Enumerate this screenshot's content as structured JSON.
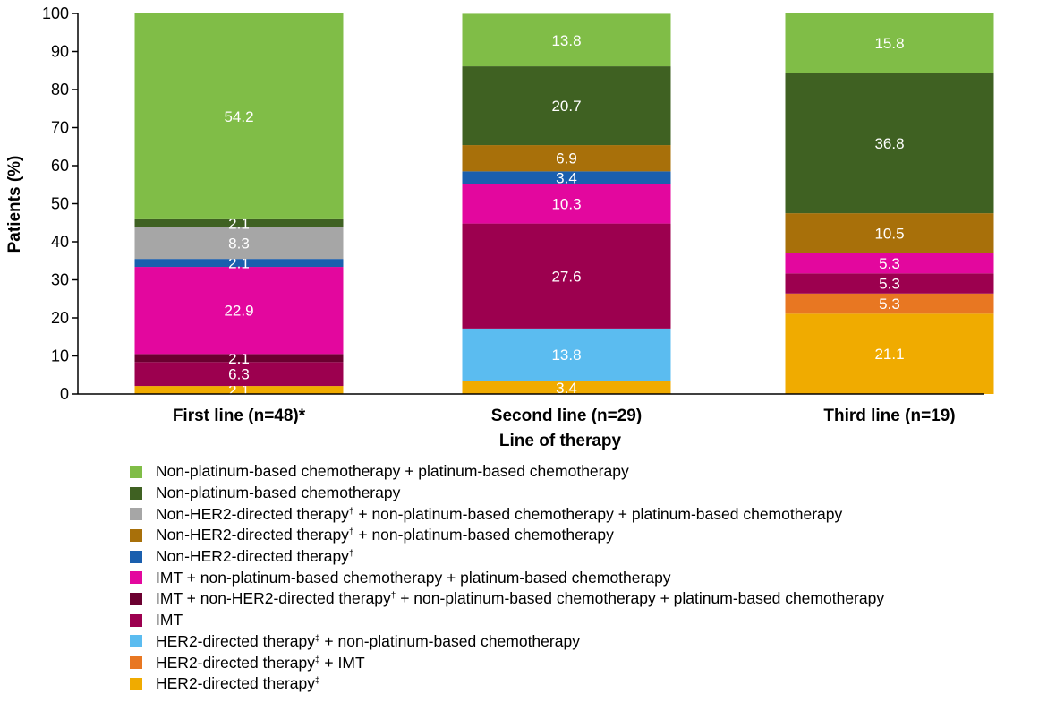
{
  "chart_data": {
    "type": "stacked-bar",
    "ylabel": "Patients (%)",
    "xlabel": "Line of therapy",
    "ylim": [
      0,
      100
    ],
    "yticks": [
      "0",
      "10",
      "20",
      "30",
      "40",
      "50",
      "60",
      "70",
      "80",
      "90",
      "100"
    ],
    "categories": [
      "First line (n=48)*",
      "Second line (n=29)",
      "Third line (n=19)"
    ],
    "series": [
      {
        "key": "her2",
        "color": "#f0ab00",
        "label": "HER2-directed therapy",
        "sup": "‡",
        "label_tail": "",
        "values": [
          2.1,
          3.4,
          21.1
        ],
        "labels": [
          "2.1",
          "3.4",
          "21.1"
        ]
      },
      {
        "key": "her2_imt",
        "color": "#e87722",
        "label": "HER2-directed therapy",
        "sup": "‡",
        "label_tail": " + IMT",
        "values": [
          0,
          0,
          5.3
        ],
        "labels": [
          "",
          "",
          "5.3"
        ]
      },
      {
        "key": "her2_nonplat",
        "color": "#5bbcf0",
        "label": "HER2-directed therapy",
        "sup": "‡",
        "label_tail": " + non-platinum-based chemotherapy",
        "values": [
          0,
          13.8,
          0
        ],
        "labels": [
          "",
          "13.8",
          ""
        ]
      },
      {
        "key": "imt",
        "color": "#9c004f",
        "label": "IMT",
        "sup": "",
        "label_tail": "",
        "values": [
          6.3,
          27.6,
          5.3
        ],
        "labels": [
          "6.3",
          "27.6",
          "5.3"
        ]
      },
      {
        "key": "imt_nonher2_nonplat_plat",
        "color": "#6b0030",
        "label": "IMT + non-HER2-directed therapy",
        "sup": "†",
        "label_tail": " + non-platinum-based chemotherapy + platinum-based chemotherapy",
        "values": [
          2.1,
          0,
          0
        ],
        "labels": [
          "2.1",
          "",
          ""
        ]
      },
      {
        "key": "imt_nonplat_plat",
        "color": "#e3079e",
        "label": "IMT + non-platinum-based chemotherapy + platinum-based chemotherapy",
        "sup": "",
        "label_tail": "",
        "values": [
          22.9,
          10.3,
          5.3
        ],
        "labels": [
          "22.9",
          "10.3",
          "5.3"
        ]
      },
      {
        "key": "nonher2",
        "color": "#1a5fae",
        "label": "Non-HER2-directed therapy",
        "sup": "†",
        "label_tail": "",
        "values": [
          2.1,
          3.4,
          0
        ],
        "labels": [
          "2.1",
          "3.4",
          ""
        ]
      },
      {
        "key": "nonher2_nonplat",
        "color": "#a8700a",
        "label": "Non-HER2-directed therapy",
        "sup": "†",
        "label_tail": " + non-platinum-based chemotherapy",
        "values": [
          0,
          6.9,
          10.5
        ],
        "labels": [
          "",
          "6.9",
          "10.5"
        ]
      },
      {
        "key": "nonher2_nonplat_plat",
        "color": "#a6a6a6",
        "label": "Non-HER2-directed therapy",
        "sup": "†",
        "label_tail": " + non-platinum-based chemotherapy + platinum-based chemotherapy",
        "values": [
          8.3,
          0,
          0
        ],
        "labels": [
          "8.3",
          "",
          ""
        ]
      },
      {
        "key": "nonplat",
        "color": "#3f6122",
        "label": "Non-platinum-based chemotherapy",
        "sup": "",
        "label_tail": "",
        "values": [
          2.1,
          20.7,
          36.8
        ],
        "labels": [
          "2.1",
          "20.7",
          "36.8"
        ]
      },
      {
        "key": "nonplat_plat",
        "color": "#80bd47",
        "label": "Non-platinum-based chemotherapy + platinum-based chemotherapy",
        "sup": "",
        "label_tail": "",
        "values": [
          54.2,
          13.8,
          15.8
        ],
        "labels": [
          "54.2",
          "13.8",
          "15.8"
        ]
      }
    ],
    "legend_order": [
      "nonplat_plat",
      "nonplat",
      "nonher2_nonplat_plat",
      "nonher2_nonplat",
      "nonher2",
      "imt_nonplat_plat",
      "imt_nonher2_nonplat_plat",
      "imt",
      "her2_nonplat",
      "her2_imt",
      "her2"
    ]
  }
}
